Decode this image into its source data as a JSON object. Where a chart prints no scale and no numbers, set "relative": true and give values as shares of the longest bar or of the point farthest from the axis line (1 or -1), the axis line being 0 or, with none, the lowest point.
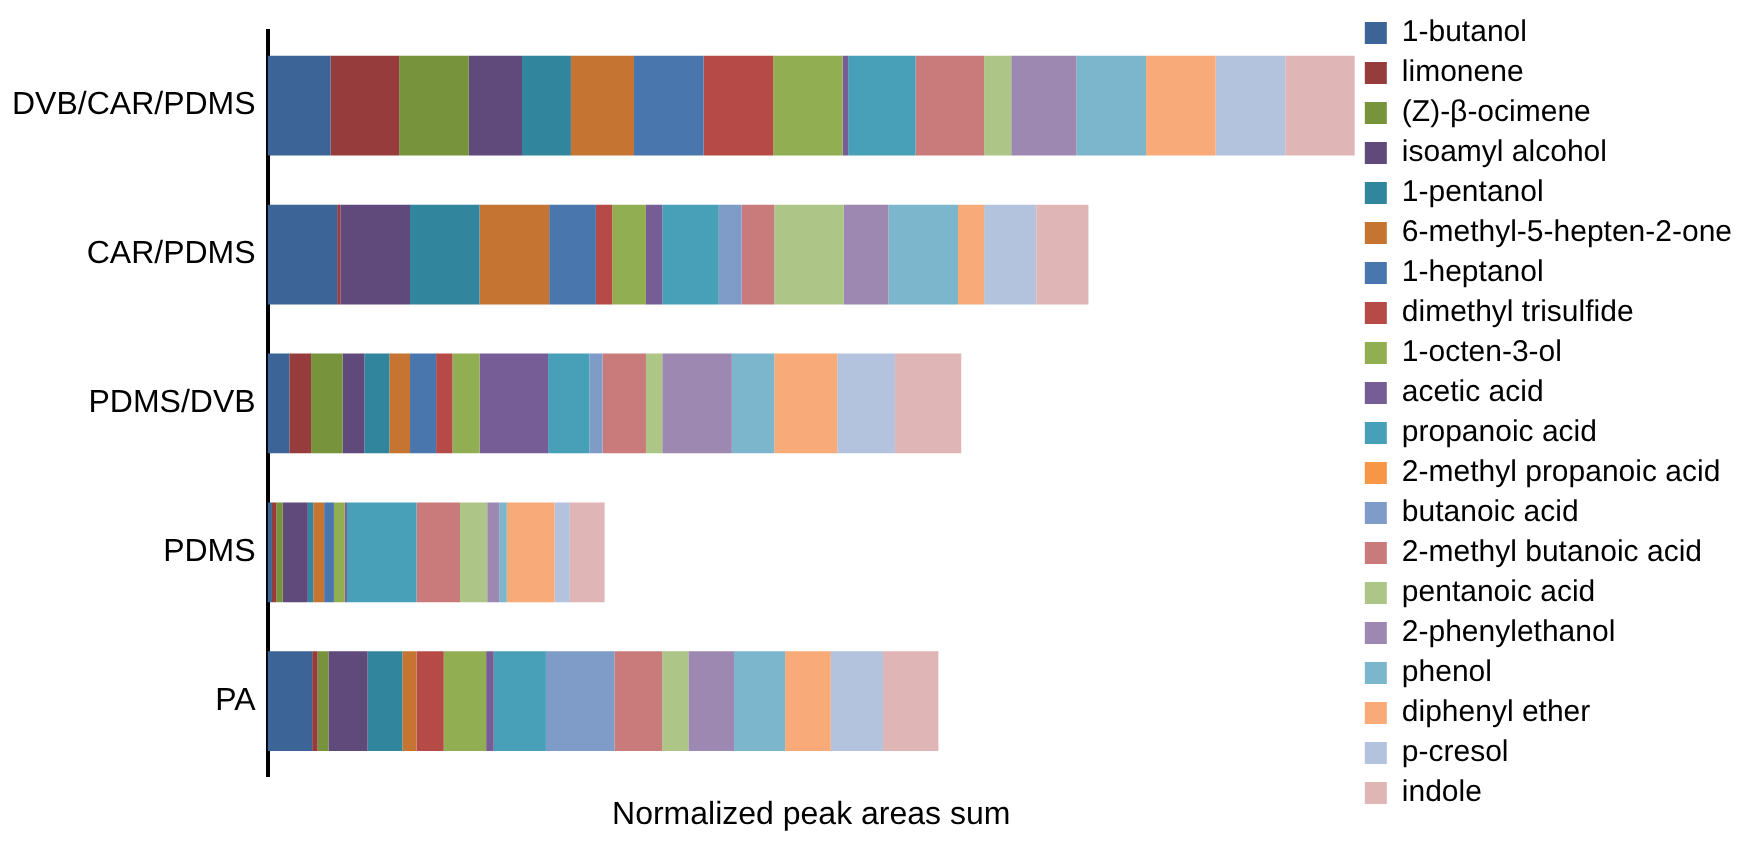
{
  "chart_data": {
    "type": "bar",
    "orientation": "horizontal",
    "stacked": true,
    "relative": true,
    "xlabel": "Normalized peak areas sum",
    "legend": "right",
    "marker": "square",
    "categories": [
      "DVB/CAR/PDMS",
      "CAR/PDMS",
      "PDMS/DVB",
      "PDMS",
      "PA"
    ],
    "series": [
      {
        "name": "1-butanol",
        "color": "#3c6496",
        "values": [
          0.058,
          0.064,
          0.02,
          0.004,
          0.041
        ]
      },
      {
        "name": "limonene",
        "color": "#963c3c",
        "values": [
          0.063,
          0.003,
          0.02,
          0.004,
          0.005
        ]
      },
      {
        "name": "(Z)-β-ocimene",
        "color": "#77933c",
        "values": [
          0.064,
          0,
          0.029,
          0.006,
          0.01
        ]
      },
      {
        "name": "isoamyl alcohol",
        "color": "#604a7b",
        "values": [
          0.049,
          0.064,
          0.02,
          0.023,
          0.036
        ]
      },
      {
        "name": "1-pentanol",
        "color": "#31859c",
        "values": [
          0.045,
          0.064,
          0.023,
          0.005,
          0.032
        ]
      },
      {
        "name": "6-methyl-5-hepten-2-one",
        "color": "#c57432",
        "values": [
          0.058,
          0.064,
          0.019,
          0.01,
          0.013
        ]
      },
      {
        "name": "1-heptanol",
        "color": "#4a76ae",
        "values": [
          0.064,
          0.043,
          0.024,
          0.009,
          0
        ]
      },
      {
        "name": "dimethyl trisulfide",
        "color": "#b54a47",
        "values": [
          0.064,
          0.015,
          0.015,
          0,
          0.025
        ]
      },
      {
        "name": "1-octen-3-ol",
        "color": "#92ae52",
        "values": [
          0.064,
          0.031,
          0.025,
          0.01,
          0.039
        ]
      },
      {
        "name": "acetic acid",
        "color": "#775d95",
        "values": [
          0.005,
          0.015,
          0.063,
          0.002,
          0.007
        ]
      },
      {
        "name": "propanoic acid",
        "color": "#47a0b8",
        "values": [
          0.062,
          0.052,
          0.038,
          0.064,
          0.048
        ]
      },
      {
        "name": "2-methyl propanoic acid",
        "color": "#f79646",
        "values": [
          0,
          0,
          0,
          0,
          0
        ]
      },
      {
        "name": "butanoic acid",
        "color": "#7f9bc7",
        "values": [
          0,
          0.021,
          0.012,
          0,
          0.063
        ]
      },
      {
        "name": "2-methyl butanoic acid",
        "color": "#c97b7b",
        "values": [
          0.063,
          0.03,
          0.04,
          0.04,
          0.044
        ]
      },
      {
        "name": "pentanoic acid",
        "color": "#adc586",
        "values": [
          0.025,
          0.064,
          0.015,
          0.025,
          0.024
        ]
      },
      {
        "name": "2-phenylethanol",
        "color": "#9c88b0",
        "values": [
          0.06,
          0.041,
          0.064,
          0.011,
          0.042
        ]
      },
      {
        "name": "phenol",
        "color": "#7bb6cc",
        "values": [
          0.064,
          0.064,
          0.039,
          0.007,
          0.047
        ]
      },
      {
        "name": "diphenyl ether",
        "color": "#f8ab78",
        "values": [
          0.064,
          0.024,
          0.058,
          0.044,
          0.042
        ]
      },
      {
        "name": "p-cresol",
        "color": "#b3c3dd",
        "values": [
          0.064,
          0.048,
          0.053,
          0.014,
          0.048
        ]
      },
      {
        "name": "indole",
        "color": "#dfb6b5",
        "values": [
          0.064,
          0.048,
          0.061,
          0.032,
          0.051
        ]
      }
    ]
  }
}
